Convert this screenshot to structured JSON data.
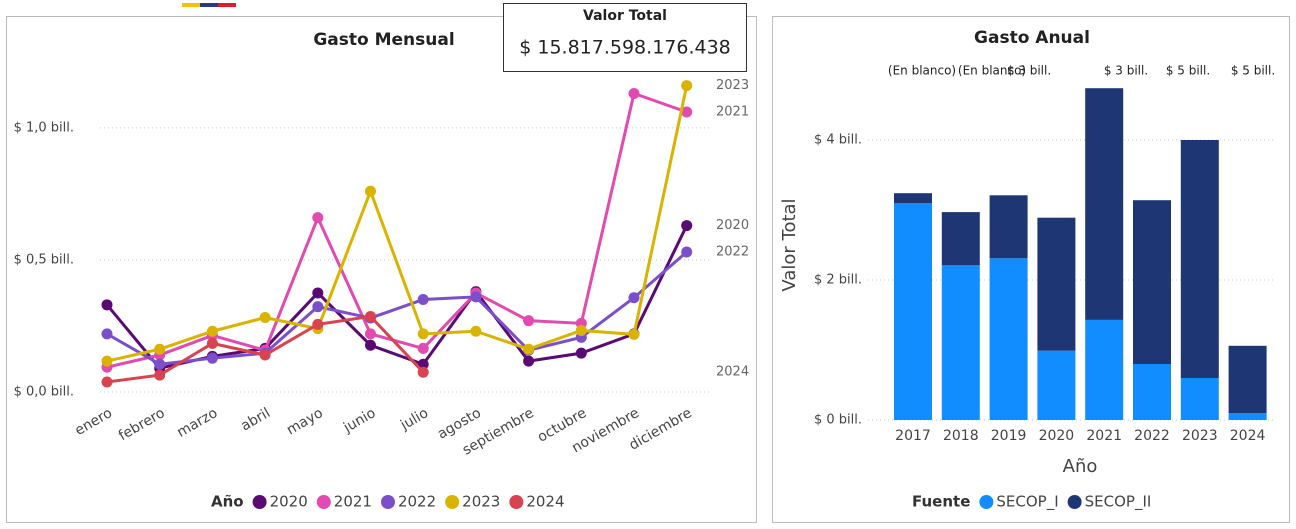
{
  "card": {
    "title": "Valor Total",
    "value": "$ 15.817.598.176.438"
  },
  "chart_data": [
    {
      "type": "line",
      "title": "Gasto Mensual",
      "legend_title": "Año",
      "legend": "bottom",
      "grid": true,
      "categories": [
        "enero",
        "febrero",
        "marzo",
        "abril",
        "mayo",
        "junio",
        "julio",
        "agosto",
        "septiembre",
        "octubre",
        "noviembre",
        "diciembre"
      ],
      "ylim": [
        0,
        1.2
      ],
      "yticks": [
        {
          "value": 0,
          "label": "$ 0,0 bill."
        },
        {
          "value": 0.5,
          "label": "$ 0,5 bill."
        },
        {
          "value": 1.0,
          "label": "$ 1,0 bill."
        }
      ],
      "series": [
        {
          "name": "2020",
          "color": "#5b0a73",
          "values": [
            0.33,
            0.09,
            0.135,
            0.165,
            0.375,
            0.177,
            0.105,
            0.38,
            0.117,
            0.147,
            0.22,
            0.63
          ]
        },
        {
          "name": "2021",
          "color": "#e14ab0",
          "values": [
            0.094,
            0.14,
            0.214,
            0.158,
            0.66,
            0.22,
            0.165,
            0.375,
            0.27,
            0.26,
            1.13,
            1.06
          ]
        },
        {
          "name": "2022",
          "color": "#7b4fc9",
          "values": [
            0.22,
            0.105,
            0.128,
            0.147,
            0.323,
            0.28,
            0.35,
            0.36,
            0.158,
            0.207,
            0.357,
            0.53
          ]
        },
        {
          "name": "2023",
          "color": "#d9b300",
          "values": [
            0.117,
            0.162,
            0.23,
            0.282,
            0.24,
            0.76,
            0.22,
            0.23,
            0.162,
            0.233,
            0.218,
            1.16
          ]
        },
        {
          "name": "2024",
          "color": "#d9434f",
          "values": [
            0.038,
            0.064,
            0.184,
            0.14,
            0.256,
            0.286,
            0.075,
            null,
            null,
            null,
            null,
            null
          ]
        }
      ]
    },
    {
      "type": "bar",
      "stacked": true,
      "title": "Gasto Anual",
      "x_label": "Año",
      "y_label": "Valor Total",
      "legend_title": "Fuente",
      "legend": "bottom",
      "grid": true,
      "categories": [
        "2017",
        "2018",
        "2019",
        "2020",
        "2021",
        "2022",
        "2023",
        "2024"
      ],
      "ylim": [
        0,
        4.8
      ],
      "yticks": [
        {
          "value": 0,
          "label": "$ 0 bill."
        },
        {
          "value": 2,
          "label": "$ 2 bill."
        },
        {
          "value": 4,
          "label": "$ 4 bill."
        }
      ],
      "annotations": [
        "(En blanco)",
        "(En blanco)",
        "$ 3 bill.",
        "$ 3 bill.",
        "$ 5 bill.",
        "$ 5 bill."
      ],
      "series": [
        {
          "name": "SECOP_I",
          "color": "#118dff",
          "values": [
            3.1,
            2.21,
            2.31,
            0.99,
            1.43,
            0.8,
            0.6,
            0.1
          ]
        },
        {
          "name": "SECOP_II",
          "color": "#1f3675",
          "values": [
            0.14,
            0.76,
            0.9,
            1.9,
            3.31,
            2.34,
            3.4,
            0.96
          ]
        }
      ]
    }
  ]
}
